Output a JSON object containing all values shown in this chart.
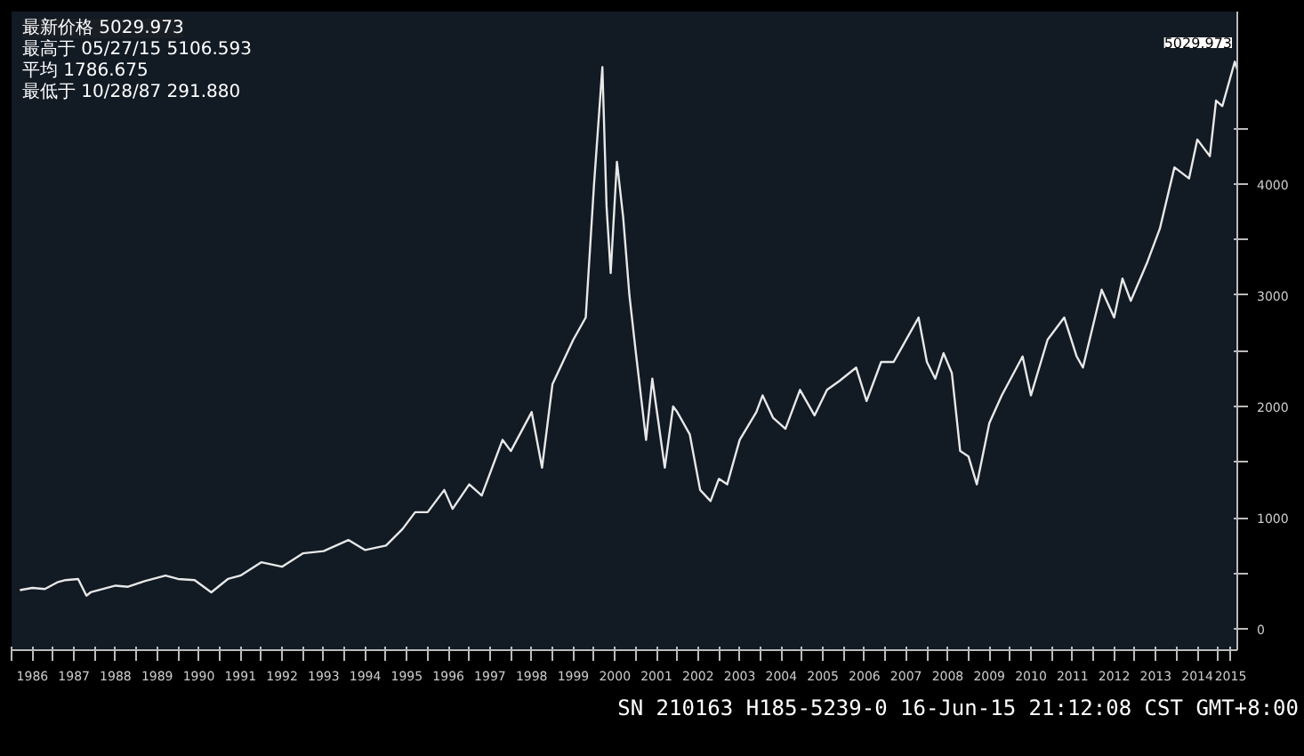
{
  "chart_data": {
    "type": "line",
    "x": [
      1986.2,
      1986.5,
      1986.8,
      1987.1,
      1987.3,
      1987.6,
      1987.8,
      1987.9,
      1988.2,
      1988.5,
      1988.8,
      1989.2,
      1989.7,
      1990.0,
      1990.4,
      1990.8,
      1991.2,
      1991.5,
      1992.0,
      1992.5,
      1993.0,
      1993.5,
      1994.1,
      1994.5,
      1995.0,
      1995.4,
      1995.7,
      1996.0,
      1996.4,
      1996.6,
      1997.0,
      1997.3,
      1997.8,
      1998.0,
      1998.5,
      1998.75,
      1999.0,
      1999.5,
      1999.8,
      2000.0,
      2000.2,
      2000.3,
      2000.4,
      2000.55,
      2000.7,
      2000.85,
      2001.0,
      2001.25,
      2001.4,
      2001.7,
      2001.9,
      2002.0,
      2002.3,
      2002.55,
      2002.8,
      2003.0,
      2003.2,
      2003.5,
      2003.9,
      2004.05,
      2004.3,
      2004.6,
      2004.95,
      2005.3,
      2005.6,
      2005.9,
      2006.3,
      2006.55,
      2006.9,
      2007.2,
      2007.8,
      2008.0,
      2008.2,
      2008.4,
      2008.6,
      2008.8,
      2009.0,
      2009.2,
      2009.5,
      2009.8,
      2010.3,
      2010.5,
      2010.9,
      2011.3,
      2011.6,
      2011.75,
      2012.2,
      2012.5,
      2012.7,
      2012.9,
      2013.3,
      2013.6,
      2013.95,
      2014.3,
      2014.5,
      2014.8,
      2014.95,
      2015.1,
      2015.4,
      2015.46
    ],
    "values": [
      350,
      370,
      360,
      420,
      440,
      450,
      300,
      330,
      360,
      390,
      380,
      430,
      480,
      450,
      440,
      330,
      450,
      480,
      600,
      560,
      680,
      700,
      800,
      710,
      750,
      900,
      1050,
      1050,
      1250,
      1080,
      1300,
      1200,
      1700,
      1600,
      1950,
      1450,
      2200,
      2600,
      2800,
      4000,
      5050,
      3800,
      3200,
      4200,
      3700,
      3000,
      2500,
      1700,
      2250,
      1450,
      2000,
      1950,
      1750,
      1250,
      1150,
      1350,
      1300,
      1700,
      1950,
      2100,
      1900,
      1800,
      2150,
      1920,
      2150,
      2230,
      2350,
      2050,
      2400,
      2400,
      2800,
      2400,
      2250,
      2480,
      2300,
      1600,
      1550,
      1300,
      1850,
      2100,
      2450,
      2100,
      2600,
      2800,
      2450,
      2350,
      3050,
      2800,
      3150,
      2950,
      3300,
      3600,
      4150,
      4050,
      4400,
      4250,
      4750,
      4700,
      5100,
      5030
    ],
    "color": "#e8e8e8",
    "xlim": [
      1986.0,
      2015.46
    ],
    "xticks": [
      {
        "value": 1986,
        "label": null
      },
      {
        "value": 1986.5,
        "label": "1986"
      },
      {
        "value": 1987,
        "label": null
      },
      {
        "value": 1987.5,
        "label": "1987"
      },
      {
        "value": 1988,
        "label": null
      },
      {
        "value": 1988.5,
        "label": "1988"
      },
      {
        "value": 1989,
        "label": null
      },
      {
        "value": 1989.5,
        "label": "1989"
      },
      {
        "value": 1990,
        "label": null
      },
      {
        "value": 1990.5,
        "label": "1990"
      },
      {
        "value": 1991,
        "label": null
      },
      {
        "value": 1991.5,
        "label": "1991"
      },
      {
        "value": 1992,
        "label": null
      },
      {
        "value": 1992.5,
        "label": "1992"
      },
      {
        "value": 1993,
        "label": null
      },
      {
        "value": 1993.5,
        "label": "1993"
      },
      {
        "value": 1994,
        "label": null
      },
      {
        "value": 1994.5,
        "label": "1994"
      },
      {
        "value": 1995,
        "label": null
      },
      {
        "value": 1995.5,
        "label": "1995"
      },
      {
        "value": 1996,
        "label": null
      },
      {
        "value": 1996.5,
        "label": "1996"
      },
      {
        "value": 1997,
        "label": null
      },
      {
        "value": 1997.5,
        "label": "1997"
      },
      {
        "value": 1998,
        "label": null
      },
      {
        "value": 1998.5,
        "label": "1998"
      },
      {
        "value": 1999,
        "label": null
      },
      {
        "value": 1999.5,
        "label": "1999"
      },
      {
        "value": 2000,
        "label": null
      },
      {
        "value": 2000.5,
        "label": "2000"
      },
      {
        "value": 2001,
        "label": null
      },
      {
        "value": 2001.5,
        "label": "2001"
      },
      {
        "value": 2002,
        "label": null
      },
      {
        "value": 2002.5,
        "label": "2002"
      },
      {
        "value": 2003,
        "label": null
      },
      {
        "value": 2003.5,
        "label": "2003"
      },
      {
        "value": 2004,
        "label": null
      },
      {
        "value": 2004.5,
        "label": "2004"
      },
      {
        "value": 2005,
        "label": null
      },
      {
        "value": 2005.5,
        "label": "2005"
      },
      {
        "value": 2006,
        "label": null
      },
      {
        "value": 2006.5,
        "label": "2006"
      },
      {
        "value": 2007,
        "label": null
      },
      {
        "value": 2007.5,
        "label": "2007"
      },
      {
        "value": 2008,
        "label": null
      },
      {
        "value": 2008.5,
        "label": "2008"
      },
      {
        "value": 2009,
        "label": null
      },
      {
        "value": 2009.5,
        "label": "2009"
      },
      {
        "value": 2010,
        "label": null
      },
      {
        "value": 2010.5,
        "label": "2010"
      },
      {
        "value": 2011,
        "label": null
      },
      {
        "value": 2011.5,
        "label": "2011"
      },
      {
        "value": 2012,
        "label": null
      },
      {
        "value": 2012.5,
        "label": "2012"
      },
      {
        "value": 2013,
        "label": null
      },
      {
        "value": 2013.5,
        "label": "2013"
      },
      {
        "value": 2014,
        "label": null
      },
      {
        "value": 2014.5,
        "label": "2014"
      },
      {
        "value": 2015,
        "label": null
      },
      {
        "value": 2015.3,
        "label": "2015"
      }
    ],
    "ylim": [
      -190,
      5550
    ],
    "yticks": [
      0,
      {
        "value": 500,
        "label": null
      },
      1000,
      {
        "value": 1500,
        "label": null
      },
      2000,
      {
        "value": 2500,
        "label": null
      },
      3000,
      {
        "value": 3500,
        "label": null
      },
      4000,
      {
        "value": 4500,
        "label": null
      }
    ],
    "grid": false,
    "line_style": "solid",
    "marker": "none",
    "annotations": [
      "最新价格 5029.973",
      "最高于 05/27/15 5106.593",
      "平均 1786.675",
      "最低于 10/28/87 291.880",
      {
        "text": "5029.973",
        "x": 2015.46,
        "y": 5029.973
      },
      "SN 210163 H185-5239-0 16-Jun-15 21:12:08 CST GMT+8:00"
    ]
  }
}
